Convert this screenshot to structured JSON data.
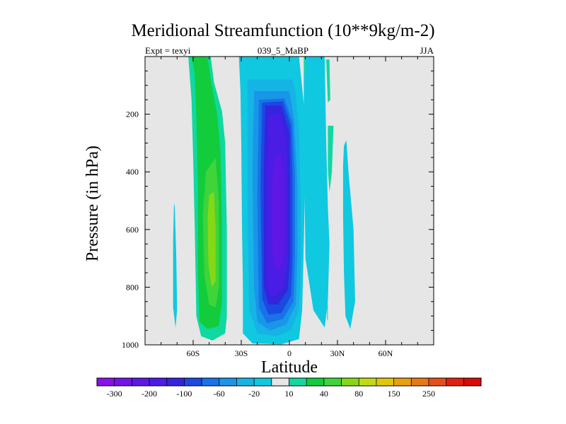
{
  "header": {
    "title": "Meridional Streamfunction (10**9kg/m-2)",
    "left_label": "Expt = texyi",
    "center_label": "039_5_MaBP",
    "right_label": "JJA"
  },
  "chart_data": {
    "type": "heatmap",
    "title": "Meridional Streamfunction (10**9kg/m-2)",
    "xlabel": "Latitude",
    "ylabel": "Pressure (in hPa)",
    "xlim": [
      -90,
      90
    ],
    "ylim": [
      1000,
      0
    ],
    "x_ticks": [
      {
        "value": -60,
        "label": "60S"
      },
      {
        "value": -30,
        "label": "30S"
      },
      {
        "value": 0,
        "label": "0"
      },
      {
        "value": 30,
        "label": "30N"
      },
      {
        "value": 60,
        "label": "60N"
      }
    ],
    "y_ticks": [
      {
        "value": 200,
        "label": "200"
      },
      {
        "value": 400,
        "label": "400"
      },
      {
        "value": 600,
        "label": "600"
      },
      {
        "value": 800,
        "label": "800"
      },
      {
        "value": 1000,
        "label": "1000"
      }
    ],
    "background_color": "#e6e6e6",
    "contour_levels": [
      -300,
      -250,
      -200,
      -150,
      -100,
      -80,
      -60,
      -40,
      -20,
      -10,
      10,
      20,
      40,
      60,
      80,
      100,
      150,
      200,
      250,
      300
    ],
    "colorbar": {
      "labels": [
        "-300",
        "-200",
        "-100",
        "-60",
        "-20",
        "10",
        "40",
        "80",
        "150",
        "250"
      ],
      "colors": [
        "#8a10e8",
        "#7414e6",
        "#5e17e4",
        "#4a1ce6",
        "#3424de",
        "#1a4ae0",
        "#1972ea",
        "#1896e8",
        "#16b4e6",
        "#10c8e0",
        "#e6e6e6",
        "#10d8a0",
        "#12cc3c",
        "#3ed43a",
        "#86d816",
        "#c0dc10",
        "#e0c60c",
        "#e6a010",
        "#e67818",
        "#e65018",
        "#e02010",
        "#d80a0a"
      ]
    },
    "regions": [
      {
        "value_class": "-10",
        "color": "#10c8e0",
        "points": [
          [
            -31.5,
            0
          ],
          [
            6,
            0
          ],
          [
            9.5,
            190
          ],
          [
            10,
            380
          ],
          [
            9,
            650
          ],
          [
            8,
            880
          ],
          [
            6,
            980
          ],
          [
            -5,
            998
          ],
          [
            -23,
            995
          ],
          [
            -29,
            960
          ],
          [
            -29,
            800
          ],
          [
            -29.5,
            600
          ],
          [
            -30,
            300
          ],
          [
            -30.5,
            120
          ]
        ]
      },
      {
        "value_class": "-10",
        "color": "#10c8e0",
        "points": [
          [
            9,
            0
          ],
          [
            22,
            0
          ],
          [
            23,
            300
          ],
          [
            24,
            520
          ],
          [
            25,
            650
          ],
          [
            24,
            850
          ],
          [
            22,
            940
          ],
          [
            15,
            880
          ],
          [
            10,
            700
          ],
          [
            9.5,
            450
          ],
          [
            9,
            200
          ]
        ]
      },
      {
        "value_class": "-10",
        "color": "#10c8e0",
        "points": [
          [
            35.5,
            290
          ],
          [
            37,
            410
          ],
          [
            40,
            600
          ],
          [
            41,
            850
          ],
          [
            38,
            945
          ],
          [
            35,
            900
          ],
          [
            34,
            750
          ],
          [
            33.5,
            550
          ],
          [
            33.5,
            380
          ],
          [
            34,
            310
          ]
        ]
      },
      {
        "value_class": "-10",
        "color": "#10c8e0",
        "points": [
          [
            -71.5,
            510
          ],
          [
            -70.5,
            700
          ],
          [
            -70,
            880
          ],
          [
            -71,
            940
          ],
          [
            -72.5,
            870
          ],
          [
            -72.5,
            640
          ],
          [
            -72,
            520
          ]
        ]
      },
      {
        "value_class": "-20",
        "color": "#16b4e6",
        "points": [
          [
            -26,
            80
          ],
          [
            2,
            80
          ],
          [
            4,
            130
          ],
          [
            6,
            260
          ],
          [
            7,
            500
          ],
          [
            7,
            740
          ],
          [
            6,
            880
          ],
          [
            1,
            950
          ],
          [
            -8,
            970
          ],
          [
            -20,
            960
          ],
          [
            -25,
            880
          ],
          [
            -26,
            600
          ],
          [
            -26,
            250
          ]
        ]
      },
      {
        "value_class": "-40",
        "color": "#1896e8",
        "points": [
          [
            -22,
            120
          ],
          [
            0,
            120
          ],
          [
            3,
            220
          ],
          [
            5,
            440
          ],
          [
            5,
            700
          ],
          [
            4,
            860
          ],
          [
            -2,
            930
          ],
          [
            -12,
            950
          ],
          [
            -20,
            920
          ],
          [
            -22,
            800
          ],
          [
            -23,
            400
          ]
        ]
      },
      {
        "value_class": "-60",
        "color": "#1972ea",
        "points": [
          [
            -19,
            150
          ],
          [
            -3,
            145
          ],
          [
            2,
            230
          ],
          [
            3.5,
            420
          ],
          [
            3.5,
            700
          ],
          [
            2.5,
            850
          ],
          [
            -4,
            910
          ],
          [
            -14,
            925
          ],
          [
            -19,
            870
          ],
          [
            -20,
            500
          ]
        ]
      },
      {
        "value_class": "-80",
        "color": "#1a4ae0",
        "points": [
          [
            -17,
            160
          ],
          [
            -4,
            155
          ],
          [
            1,
            240
          ],
          [
            2,
            430
          ],
          [
            2,
            700
          ],
          [
            1,
            830
          ],
          [
            -5,
            890
          ],
          [
            -13,
            895
          ],
          [
            -17,
            840
          ],
          [
            -18,
            450
          ]
        ]
      },
      {
        "value_class": "-100",
        "color": "#3424de",
        "points": [
          [
            -15,
            170
          ],
          [
            -5,
            170
          ],
          [
            0,
            260
          ],
          [
            0.5,
            450
          ],
          [
            0.5,
            700
          ],
          [
            -1,
            810
          ],
          [
            -7,
            860
          ],
          [
            -13,
            860
          ],
          [
            -16,
            800
          ],
          [
            -16,
            400
          ]
        ]
      },
      {
        "value_class": "-150",
        "color": "#4a1ce6",
        "points": [
          [
            -13,
            200
          ],
          [
            -6,
            200
          ],
          [
            -2,
            280
          ],
          [
            -1,
            460
          ],
          [
            -1,
            700
          ],
          [
            -3,
            790
          ],
          [
            -8,
            830
          ],
          [
            -12,
            830
          ],
          [
            -14,
            780
          ],
          [
            -14,
            400
          ]
        ]
      },
      {
        "value_class": "-200",
        "color": "#5e17e4",
        "points": [
          [
            -10,
            360
          ],
          [
            -5,
            340
          ],
          [
            -3,
            430
          ],
          [
            -3,
            650
          ],
          [
            -5,
            730
          ],
          [
            -8,
            740
          ],
          [
            -10.5,
            700
          ],
          [
            -11,
            500
          ]
        ]
      },
      {
        "value_class": "10",
        "color": "#10d8a0",
        "points": [
          [
            -63,
            0
          ],
          [
            -49,
            0
          ],
          [
            -47,
            90
          ],
          [
            -42,
            190
          ],
          [
            -40,
            300
          ],
          [
            -39,
            600
          ],
          [
            -39,
            900
          ],
          [
            -40,
            960
          ],
          [
            -48,
            985
          ],
          [
            -55,
            970
          ],
          [
            -58,
            900
          ],
          [
            -59,
            600
          ],
          [
            -60,
            350
          ],
          [
            -61,
            150
          ]
        ]
      },
      {
        "value_class": "10",
        "color": "#10d8a0",
        "points": [
          [
            23,
            10
          ],
          [
            25,
            10
          ],
          [
            25.5,
            150
          ],
          [
            24,
            160
          ],
          [
            23.5,
            90
          ]
        ]
      },
      {
        "value_class": "10",
        "color": "#10d8a0",
        "points": [
          [
            24,
            240
          ],
          [
            27.5,
            240
          ],
          [
            26.5,
            400
          ],
          [
            25,
            470
          ],
          [
            24,
            390
          ]
        ]
      },
      {
        "value_class": "10",
        "color": "#10d8a0",
        "points": [
          [
            9,
            0
          ],
          [
            10,
            0
          ],
          [
            10.5,
            60
          ],
          [
            9.5,
            65
          ]
        ]
      },
      {
        "value_class": "10",
        "color": "#10d8a0",
        "points": [
          [
            23.5,
            860
          ],
          [
            24,
            860
          ],
          [
            24,
            920
          ],
          [
            23.5,
            910
          ]
        ]
      },
      {
        "value_class": "20",
        "color": "#12cc3c",
        "points": [
          [
            -61,
            0
          ],
          [
            -51,
            0
          ],
          [
            -49,
            80
          ],
          [
            -45,
            200
          ],
          [
            -43,
            320
          ],
          [
            -42,
            600
          ],
          [
            -42,
            850
          ],
          [
            -44,
            935
          ],
          [
            -51,
            945
          ],
          [
            -56,
            920
          ],
          [
            -57,
            750
          ],
          [
            -57,
            450
          ],
          [
            -58,
            200
          ],
          [
            -59,
            60
          ]
        ]
      },
      {
        "value_class": "40",
        "color": "#3ed43a",
        "points": [
          [
            -52,
            400
          ],
          [
            -46,
            350
          ],
          [
            -44,
            500
          ],
          [
            -44,
            800
          ],
          [
            -46,
            870
          ],
          [
            -50,
            860
          ],
          [
            -53,
            760
          ],
          [
            -54,
            550
          ]
        ]
      },
      {
        "value_class": "60",
        "color": "#86d816",
        "points": [
          [
            -50,
            480
          ],
          [
            -47,
            470
          ],
          [
            -46,
            600
          ],
          [
            -46,
            780
          ],
          [
            -48.5,
            800
          ],
          [
            -50.5,
            720
          ],
          [
            -51,
            560
          ]
        ]
      }
    ]
  }
}
